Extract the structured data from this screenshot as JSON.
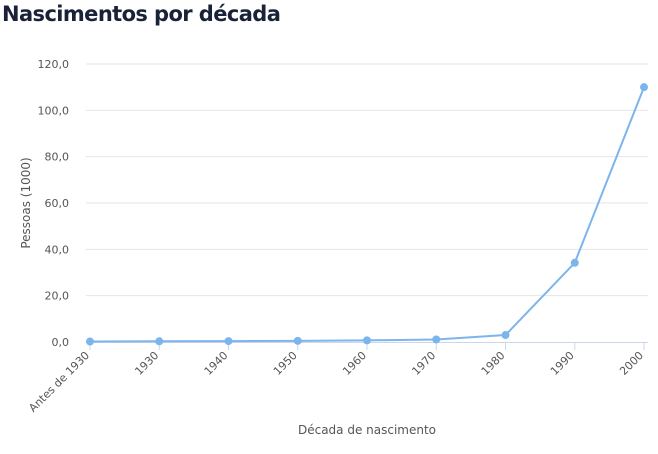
{
  "title": "Nascimentos por década",
  "chart_data": {
    "type": "line",
    "title": "Nascimentos por década",
    "xlabel": "Década de nascimento",
    "ylabel": "Pessoas (1000)",
    "categories": [
      "Antes de 1930",
      "1930",
      "1940",
      "1950",
      "1960",
      "1970",
      "1980",
      "1990",
      "2000"
    ],
    "series": [
      {
        "name": "Pessoas (1000)",
        "values": [
          0.2,
          0.3,
          0.4,
          0.5,
          0.7,
          1.1,
          3.0,
          34.2,
          110.0
        ]
      }
    ],
    "yticks": [
      0,
      20,
      40,
      60,
      80,
      100,
      120
    ],
    "ytick_labels": [
      "0,0",
      "20,0",
      "40,0",
      "60,0",
      "80,0",
      "100,0",
      "120,0"
    ],
    "ylim": [
      0,
      120
    ],
    "grid": true,
    "colors": {
      "line": "#7cb5ec",
      "grid": "#e6e6e6",
      "axis": "#ccd6eb"
    }
  }
}
